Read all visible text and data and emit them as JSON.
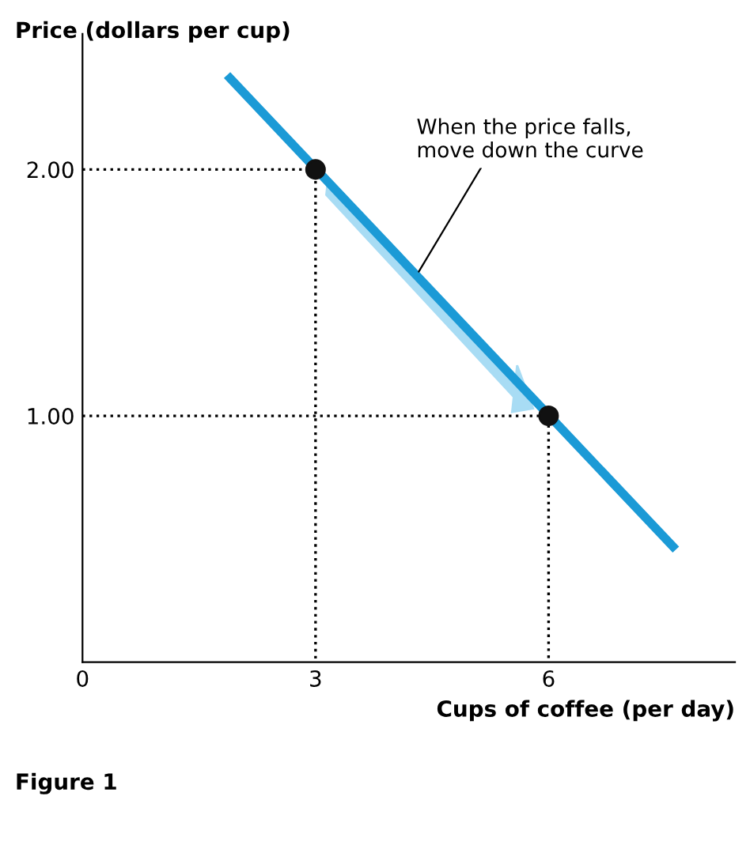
{
  "chart_data": {
    "type": "line",
    "xlabel": "Cups of coffee (per day)",
    "ylabel": "Price (dollars per cup)",
    "xlim": [
      0,
      8.4
    ],
    "ylim": [
      0,
      2.55
    ],
    "xticks": [
      0,
      3,
      6
    ],
    "yticks": [
      {
        "value": 1,
        "label": "1.00"
      },
      {
        "value": 2,
        "label": "2.00"
      }
    ],
    "grid": false,
    "legend": false,
    "series": [
      {
        "color": "#000000",
        "line_style": "dotted",
        "x": [
          0,
          3,
          3
        ],
        "values": [
          2,
          2,
          0
        ]
      },
      {
        "color": "#000000",
        "line_style": "dotted",
        "x": [
          0,
          6,
          6
        ],
        "values": [
          1,
          1,
          0
        ]
      },
      {
        "color": "#1b9ad6",
        "line_style": "solid",
        "x": [
          1.9,
          7.6
        ],
        "values": [
          2.37,
          0.47
        ]
      },
      {
        "type": "scatter",
        "color": "#111111",
        "marker": "circle",
        "x": [
          3,
          6
        ],
        "values": [
          2,
          1
        ]
      }
    ],
    "annotations": [
      {
        "text": "When the price falls,\nmove down the curve",
        "x": 4.3,
        "y": 1.57
      },
      "Figure 1"
    ]
  }
}
